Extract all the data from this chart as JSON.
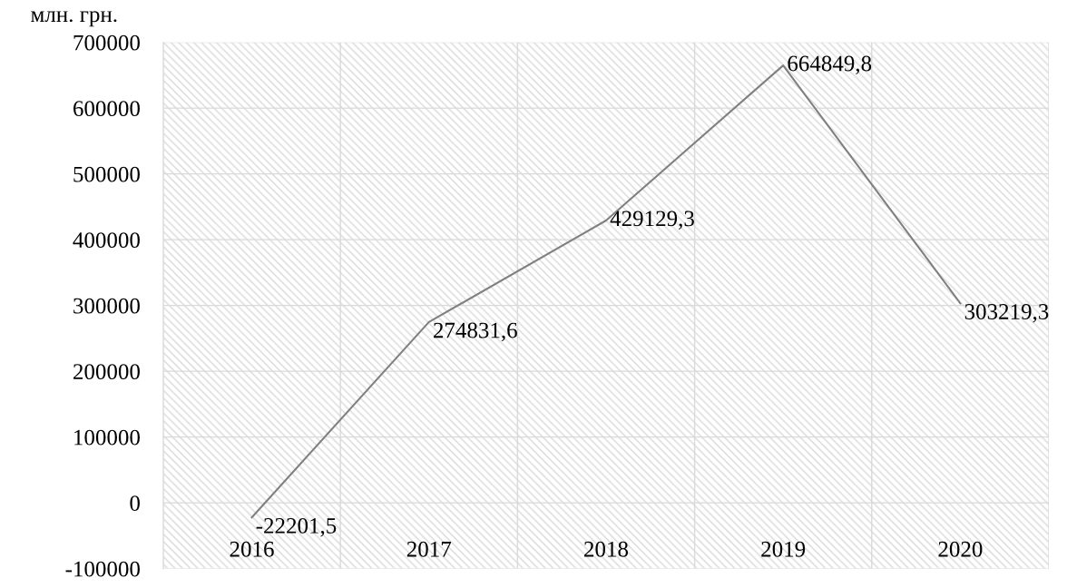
{
  "chart_data": {
    "type": "line",
    "ylabel": "млн. грн.",
    "categories": [
      "2016",
      "2017",
      "2018",
      "2019",
      "2020"
    ],
    "series": [
      {
        "color": "#808080",
        "values": [
          -22201.5,
          274831.6,
          429129.3,
          664849.8,
          303219.3
        ],
        "value_labels": [
          "-22201,5",
          "274831,6",
          "429129,3",
          "664849,8",
          "303219,3"
        ]
      }
    ],
    "ylim": [
      -100000,
      700000
    ],
    "yticks": [
      -100000,
      0,
      100000,
      200000,
      300000,
      400000,
      500000,
      600000,
      700000
    ],
    "grid": true,
    "marker": "none",
    "line_style": "solid",
    "legend": false
  }
}
